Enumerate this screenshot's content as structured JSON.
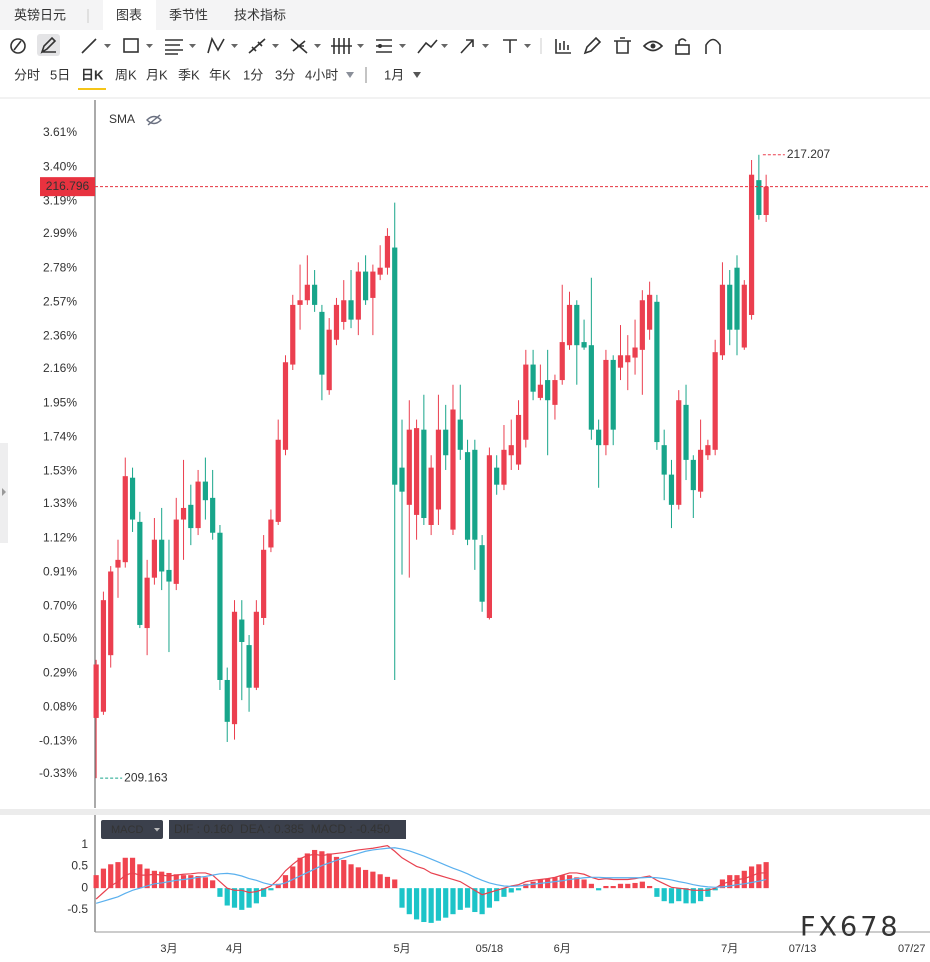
{
  "header": {
    "symbol": "英镑日元",
    "tabs": [
      "图表",
      "季节性",
      "技术指标"
    ]
  },
  "periods": [
    "分时",
    "5日",
    "日K",
    "周K",
    "月K",
    "季K",
    "年K",
    "1分",
    "3分",
    "4小时"
  ],
  "interval": "1月",
  "watermark": "FX678",
  "chart_data": [
    {
      "type": "candlestick",
      "indicator": "SMA",
      "up_color": "#eb3f4f",
      "down_color": "#17a58a",
      "last_line_color": "#e8323f",
      "categories": [
        null,
        null,
        null,
        null,
        null,
        null,
        null,
        null,
        null,
        null,
        "3月",
        null,
        null,
        null,
        null,
        null,
        null,
        null,
        null,
        "4月",
        null,
        null,
        null,
        null,
        null,
        null,
        null,
        null,
        null,
        null,
        null,
        null,
        null,
        null,
        null,
        null,
        null,
        null,
        null,
        null,
        null,
        null,
        "5月",
        null,
        null,
        null,
        null,
        null,
        null,
        null,
        null,
        null,
        null,
        null,
        "05/18",
        null,
        null,
        null,
        null,
        null,
        null,
        null,
        null,
        null,
        "6月",
        null,
        null,
        null,
        null,
        null,
        null,
        null,
        null,
        null,
        null,
        null,
        null,
        null,
        null,
        null,
        null,
        null,
        null,
        null,
        null,
        null,
        null,
        "7月",
        null,
        null,
        null,
        null,
        null,
        null,
        null,
        null,
        null,
        "07/13",
        null,
        null,
        null,
        null,
        null,
        null,
        null,
        null,
        null,
        null,
        null,
        null,
        null,
        null,
        "07/27",
        null,
        null
      ],
      "open": [
        209.94,
        210.02,
        210.75,
        211.88,
        211.95,
        213.04,
        212.47,
        211.1,
        211.75,
        212.24,
        211.85,
        211.67,
        212.5,
        212.69,
        212.39,
        212.99,
        212.78,
        212.33,
        210.43,
        209.86,
        211.21,
        210.88,
        210.33,
        211.23,
        212.14,
        212.47,
        213.4,
        214.5,
        215.27,
        215.33,
        215.53,
        215.18,
        214.17,
        214.82,
        215.05,
        215.33,
        215.08,
        215.7,
        215.36,
        215.66,
        215.75,
        216.01,
        213.17,
        212.69,
        212.56,
        213.66,
        212.43,
        212.63,
        213.66,
        212.37,
        213.79,
        213.37,
        213.4,
        212.17,
        211.23,
        213.17,
        212.95,
        213.33,
        213.21,
        213.53,
        214.5,
        214.07,
        214.3,
        213.98,
        214.3,
        214.75,
        215.27,
        214.79,
        214.75,
        213.66,
        213.46,
        214.56,
        214.46,
        214.53,
        214.59,
        214.69,
        214.95,
        215.31,
        213.46,
        213.08,
        212.69,
        213.98,
        213.27,
        212.86,
        213.33,
        213.4,
        214.62,
        215.53,
        215.75,
        214.72,
        215.14,
        216.88,
        216.43,
        null,
        null,
        null,
        null,
        null,
        null,
        null,
        null,
        null,
        null,
        null,
        null,
        null,
        null,
        null,
        null,
        null,
        null,
        null,
        null,
        null,
        null
      ],
      "high": [
        210.69,
        211.57,
        211.9,
        212.24,
        213.3,
        213.17,
        212.6,
        211.98,
        212.52,
        212.65,
        212.24,
        212.78,
        213.27,
        212.95,
        213.14,
        213.3,
        213.14,
        212.43,
        210.59,
        211.46,
        211.46,
        211.01,
        211.46,
        212.3,
        212.63,
        213.79,
        214.62,
        215.4,
        215.79,
        215.91,
        215.72,
        215.27,
        215.1,
        215.36,
        215.59,
        215.72,
        215.82,
        215.91,
        215.79,
        216.04,
        216.26,
        216.59,
        213.79,
        214.04,
        213.79,
        214.11,
        213.33,
        214.11,
        213.98,
        214.24,
        214.24,
        213.53,
        213.53,
        212.3,
        213.43,
        213.33,
        213.72,
        213.79,
        214.04,
        214.69,
        214.69,
        214.5,
        214.69,
        214.37,
        215.53,
        215.44,
        215.33,
        215.08,
        215.62,
        213.79,
        214.69,
        214.62,
        215.01,
        214.88,
        215.08,
        215.46,
        215.57,
        215.4,
        213.66,
        213.27,
        214.17,
        214.24,
        213.33,
        213.79,
        213.53,
        214.82,
        215.82,
        215.72,
        215.91,
        215.59,
        217.14,
        217.207,
        216.95,
        null,
        null,
        null,
        null,
        null,
        null,
        null,
        null,
        null,
        null,
        null,
        null,
        null,
        null,
        null,
        null,
        null,
        null,
        null,
        null,
        null,
        null
      ],
      "low": [
        209.163,
        209.98,
        210.59,
        211.49,
        211.88,
        212.34,
        211.1,
        210.75,
        211.66,
        211.59,
        210.79,
        211.59,
        211.98,
        212.17,
        212.3,
        212.5,
        212.24,
        210.3,
        209.63,
        209.66,
        210.17,
        210.02,
        210.3,
        211.14,
        212.08,
        212.43,
        213.33,
        214.43,
        214.95,
        215.27,
        215.18,
        214.04,
        214.11,
        214.75,
        214.95,
        214.97,
        214.88,
        215.27,
        214.88,
        215.59,
        215.66,
        210.43,
        211.79,
        211.75,
        212.24,
        212.43,
        212.3,
        212.43,
        213.14,
        212.3,
        213.27,
        212.17,
        211.85,
        211.31,
        211.21,
        212.82,
        212.88,
        213.14,
        213.14,
        213.43,
        214.04,
        214.04,
        213.33,
        213.79,
        214.24,
        214.69,
        214.24,
        214.69,
        213.53,
        212.91,
        213.33,
        213.46,
        214.3,
        214.17,
        214.37,
        214.11,
        214.82,
        213.4,
        212.75,
        212.39,
        212.63,
        213.01,
        212.52,
        212.78,
        213.27,
        213.33,
        214.56,
        214.75,
        214.62,
        214.69,
        215.08,
        216.37,
        216.34,
        null,
        null,
        null,
        null,
        null,
        null,
        null,
        null,
        null,
        null,
        null,
        null,
        null,
        null,
        null,
        null,
        null,
        null,
        null,
        null,
        null,
        null
      ],
      "close": [
        210.63,
        211.46,
        211.83,
        211.98,
        213.06,
        212.5,
        211.14,
        211.75,
        212.24,
        211.83,
        211.7,
        212.5,
        212.65,
        212.39,
        212.99,
        212.75,
        212.33,
        210.43,
        209.89,
        211.31,
        210.92,
        210.33,
        211.31,
        212.11,
        212.5,
        213.53,
        214.53,
        215.27,
        215.33,
        215.53,
        215.27,
        214.37,
        214.95,
        215.27,
        215.33,
        215.08,
        215.7,
        215.33,
        215.7,
        215.75,
        216.16,
        212.95,
        212.86,
        213.66,
        213.68,
        212.52,
        213.17,
        213.66,
        213.33,
        213.92,
        213.4,
        212.24,
        212.24,
        211.44,
        213.33,
        212.95,
        213.4,
        213.46,
        213.85,
        214.5,
        214.15,
        214.24,
        214.04,
        214.3,
        214.79,
        215.27,
        214.75,
        214.72,
        213.66,
        213.46,
        214.56,
        213.66,
        214.62,
        214.62,
        214.72,
        215.33,
        215.4,
        213.5,
        213.08,
        212.69,
        214.04,
        213.27,
        212.88,
        213.4,
        213.46,
        214.66,
        215.53,
        214.95,
        214.95,
        215.53,
        216.95,
        216.43,
        216.796,
        null,
        null,
        null,
        null,
        null,
        null,
        null,
        null,
        null,
        null,
        null,
        null,
        null,
        null,
        null,
        null,
        null,
        null,
        null,
        null,
        null,
        null
      ],
      "ylim": [
        208.778,
        217.914
      ],
      "yticks": [
        {
          "value": 217.488,
          "label": "3.61%"
        },
        {
          "value": 217.047,
          "label": "3.40%"
        },
        {
          "value": 216.606,
          "label": "3.19%"
        },
        {
          "value": 216.186,
          "label": "2.99%"
        },
        {
          "value": 215.745,
          "label": "2.78%"
        },
        {
          "value": 215.305,
          "label": "2.57%"
        },
        {
          "value": 214.864,
          "label": "2.36%"
        },
        {
          "value": 214.444,
          "label": "2.16%"
        },
        {
          "value": 214.003,
          "label": "1.95%"
        },
        {
          "value": 213.562,
          "label": "1.74%"
        },
        {
          "value": 213.122,
          "label": "1.53%"
        },
        {
          "value": 212.702,
          "label": "1.33%"
        },
        {
          "value": 212.261,
          "label": "1.12%"
        },
        {
          "value": 211.82,
          "label": "0.91%"
        },
        {
          "value": 211.379,
          "label": "0.70%"
        },
        {
          "value": 210.96,
          "label": "0.50%"
        },
        {
          "value": 210.519,
          "label": "0.29%"
        },
        {
          "value": 210.078,
          "label": "0.08%"
        },
        {
          "value": 209.637,
          "label": "-0.13%"
        },
        {
          "value": 209.217,
          "label": "-0.33%"
        }
      ],
      "grid": false
    },
    {
      "type": "macd",
      "indicator": "MACD",
      "readout": "DIF : 0.160  DEA : 0.385  MACD : -0.450",
      "up_color": "#f0444f",
      "down_color": "#1cc4c8",
      "histogram": [
        0.3,
        0.45,
        0.55,
        0.6,
        0.7,
        0.7,
        0.55,
        0.45,
        0.4,
        0.38,
        0.35,
        0.32,
        0.3,
        0.3,
        0.28,
        0.25,
        0.18,
        -0.2,
        -0.4,
        -0.45,
        -0.5,
        -0.45,
        -0.35,
        -0.2,
        -0.05,
        0.1,
        0.3,
        0.5,
        0.7,
        0.8,
        0.88,
        0.85,
        0.8,
        0.72,
        0.65,
        0.55,
        0.48,
        0.42,
        0.38,
        0.32,
        0.26,
        0.2,
        -0.45,
        -0.6,
        -0.72,
        -0.78,
        -0.8,
        -0.75,
        -0.68,
        -0.6,
        -0.5,
        -0.45,
        -0.55,
        -0.6,
        -0.45,
        -0.3,
        -0.2,
        -0.1,
        -0.05,
        0.1,
        0.15,
        0.2,
        0.22,
        0.25,
        0.3,
        0.3,
        0.25,
        0.2,
        0.1,
        -0.05,
        0.05,
        0.05,
        0.1,
        0.1,
        0.12,
        0.15,
        0.05,
        -0.2,
        -0.3,
        -0.35,
        -0.3,
        -0.35,
        -0.35,
        -0.3,
        -0.2,
        -0.05,
        0.2,
        0.3,
        0.3,
        0.4,
        0.5,
        0.55,
        0.6,
        null,
        null,
        null,
        null,
        null,
        null,
        null,
        null,
        null,
        null,
        null,
        null,
        null,
        null,
        null,
        null,
        null,
        null,
        null,
        null,
        null,
        null
      ],
      "series": [
        {
          "name": "DIF",
          "color": "#e8414f",
          "values": [
            -0.25,
            -0.1,
            0.05,
            0.15,
            0.3,
            0.35,
            0.3,
            0.3,
            0.32,
            0.3,
            0.28,
            0.3,
            0.32,
            0.33,
            0.35,
            0.35,
            0.3,
            0.15,
            0.0,
            -0.05,
            -0.05,
            -0.1,
            -0.08,
            -0.02,
            0.05,
            0.2,
            0.4,
            0.55,
            0.68,
            0.75,
            0.78,
            0.75,
            0.78,
            0.8,
            0.82,
            0.85,
            0.88,
            0.9,
            0.92,
            0.95,
            0.98,
            0.85,
            0.7,
            0.6,
            0.5,
            0.45,
            0.35,
            0.3,
            0.25,
            0.2,
            0.15,
            0.05,
            -0.05,
            -0.15,
            -0.1,
            -0.05,
            0.0,
            0.05,
            0.08,
            0.15,
            0.18,
            0.2,
            0.22,
            0.25,
            0.3,
            0.35,
            0.35,
            0.32,
            0.25,
            0.2,
            0.22,
            0.2,
            0.2,
            0.2,
            0.22,
            0.25,
            0.28,
            0.18,
            0.1,
            0.02,
            0.0,
            -0.02,
            -0.05,
            -0.05,
            -0.05,
            0.0,
            0.1,
            0.15,
            0.2,
            0.22,
            0.28,
            0.35,
            0.35,
            null,
            null,
            null,
            null,
            null,
            null,
            null,
            null,
            null,
            null,
            null,
            null,
            null,
            null,
            null,
            null,
            null,
            null,
            null,
            null,
            null,
            null
          ]
        },
        {
          "name": "DEA",
          "color": "#5ab0ee",
          "values": [
            -0.35,
            -0.3,
            -0.25,
            -0.2,
            -0.12,
            -0.05,
            0.0,
            0.05,
            0.1,
            0.12,
            0.15,
            0.18,
            0.2,
            0.22,
            0.25,
            0.27,
            0.3,
            0.33,
            0.34,
            0.32,
            0.28,
            0.22,
            0.18,
            0.12,
            0.08,
            0.08,
            0.12,
            0.2,
            0.28,
            0.36,
            0.44,
            0.52,
            0.58,
            0.64,
            0.7,
            0.75,
            0.8,
            0.85,
            0.88,
            0.9,
            0.92,
            0.93,
            0.9,
            0.86,
            0.8,
            0.74,
            0.67,
            0.6,
            0.53,
            0.46,
            0.4,
            0.33,
            0.25,
            0.18,
            0.12,
            0.08,
            0.05,
            0.04,
            0.05,
            0.07,
            0.09,
            0.11,
            0.13,
            0.15,
            0.17,
            0.2,
            0.22,
            0.24,
            0.25,
            0.25,
            0.24,
            0.24,
            0.24,
            0.24,
            0.24,
            0.24,
            0.25,
            0.24,
            0.22,
            0.19,
            0.15,
            0.12,
            0.08,
            0.05,
            0.03,
            0.02,
            0.03,
            0.05,
            0.08,
            0.1,
            0.13,
            0.16,
            0.2,
            null,
            null,
            null,
            null,
            null,
            null,
            null,
            null,
            null,
            null,
            null,
            null,
            null,
            null,
            null,
            null,
            null,
            null,
            null,
            null,
            null,
            null
          ]
        }
      ],
      "ylim": [
        -1.01,
        1.57
      ],
      "yticks": [
        1,
        0.5,
        0,
        -0.5
      ]
    }
  ]
}
